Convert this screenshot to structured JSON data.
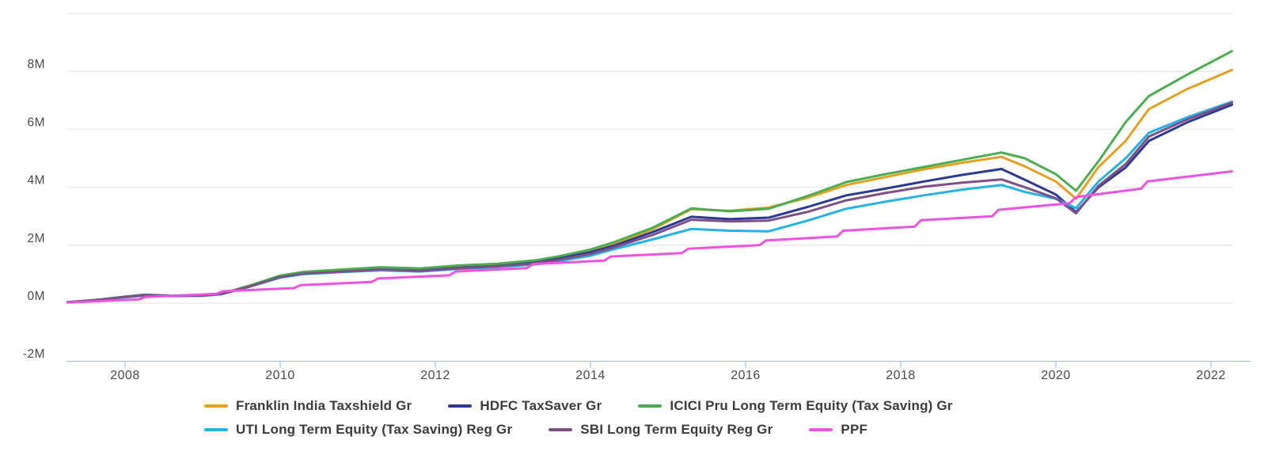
{
  "chart_data": {
    "type": "line",
    "title": "",
    "xlabel": "",
    "ylabel": "",
    "unit": "M",
    "grid": "horizontal",
    "legend_position": "bottom",
    "x_axis": {
      "range": [
        2007.1,
        2022.45
      ],
      "ticks": [
        {
          "value": 2008,
          "label": "2008"
        },
        {
          "value": 2010,
          "label": "2010"
        },
        {
          "value": 2012,
          "label": "2012"
        },
        {
          "value": 2014,
          "label": "2014"
        },
        {
          "value": 2016,
          "label": "2016"
        },
        {
          "value": 2018,
          "label": "2018"
        },
        {
          "value": 2020,
          "label": "2020"
        },
        {
          "value": 2022,
          "label": "2022"
        }
      ]
    },
    "y_axis": {
      "range": [
        -2,
        10
      ],
      "ticks": [
        {
          "value": -2,
          "label": "-2M"
        },
        {
          "value": 0,
          "label": "0M"
        },
        {
          "value": 2,
          "label": "2M"
        },
        {
          "value": 4,
          "label": "4M"
        },
        {
          "value": 6,
          "label": "6M"
        },
        {
          "value": 8,
          "label": "8M"
        },
        {
          "value": 10,
          "label": ""
        }
      ]
    },
    "styles": {
      "background": "#ffffff",
      "grid_color": "#e8e8e8",
      "axis_color": "#a9c4de",
      "tick_label_color": "#4a4a4a",
      "legend_text_color": "#3c3c3c",
      "line_width": 3
    },
    "series": [
      {
        "name": "Franklin India Taxshield Gr",
        "color": "#e5a023",
        "points": [
          [
            2007.26,
            0.03
          ],
          [
            2007.6,
            0.1
          ],
          [
            2008.0,
            0.21
          ],
          [
            2008.25,
            0.27
          ],
          [
            2008.6,
            0.25
          ],
          [
            2009.0,
            0.26
          ],
          [
            2009.25,
            0.32
          ],
          [
            2009.6,
            0.58
          ],
          [
            2010.0,
            0.92
          ],
          [
            2010.3,
            1.04
          ],
          [
            2010.8,
            1.12
          ],
          [
            2011.3,
            1.2
          ],
          [
            2011.8,
            1.16
          ],
          [
            2012.3,
            1.26
          ],
          [
            2012.8,
            1.33
          ],
          [
            2013.3,
            1.45
          ],
          [
            2013.6,
            1.58
          ],
          [
            2014.0,
            1.81
          ],
          [
            2014.3,
            2.05
          ],
          [
            2014.8,
            2.55
          ],
          [
            2015.3,
            3.24
          ],
          [
            2015.8,
            3.19
          ],
          [
            2016.3,
            3.3
          ],
          [
            2016.8,
            3.64
          ],
          [
            2017.3,
            4.08
          ],
          [
            2017.8,
            4.35
          ],
          [
            2018.3,
            4.62
          ],
          [
            2018.8,
            4.85
          ],
          [
            2019.3,
            5.05
          ],
          [
            2019.6,
            4.72
          ],
          [
            2020.0,
            4.2
          ],
          [
            2020.26,
            3.6
          ],
          [
            2020.55,
            4.7
          ],
          [
            2020.9,
            5.6
          ],
          [
            2021.2,
            6.7
          ],
          [
            2021.7,
            7.4
          ],
          [
            2022.27,
            8.05
          ]
        ]
      },
      {
        "name": "HDFC TaxSaver Gr",
        "color": "#2c3a96",
        "points": [
          [
            2007.26,
            0.03
          ],
          [
            2007.6,
            0.1
          ],
          [
            2008.0,
            0.22
          ],
          [
            2008.25,
            0.29
          ],
          [
            2008.6,
            0.26
          ],
          [
            2009.0,
            0.27
          ],
          [
            2009.25,
            0.33
          ],
          [
            2009.6,
            0.59
          ],
          [
            2010.0,
            0.93
          ],
          [
            2010.3,
            1.06
          ],
          [
            2010.8,
            1.13
          ],
          [
            2011.3,
            1.2
          ],
          [
            2011.8,
            1.15
          ],
          [
            2012.3,
            1.24
          ],
          [
            2012.8,
            1.3
          ],
          [
            2013.3,
            1.42
          ],
          [
            2013.6,
            1.55
          ],
          [
            2014.0,
            1.76
          ],
          [
            2014.3,
            1.98
          ],
          [
            2014.8,
            2.45
          ],
          [
            2015.3,
            2.98
          ],
          [
            2015.8,
            2.9
          ],
          [
            2016.3,
            2.95
          ],
          [
            2016.8,
            3.32
          ],
          [
            2017.3,
            3.72
          ],
          [
            2017.8,
            3.95
          ],
          [
            2018.3,
            4.2
          ],
          [
            2018.8,
            4.43
          ],
          [
            2019.3,
            4.63
          ],
          [
            2019.6,
            4.26
          ],
          [
            2020.0,
            3.75
          ],
          [
            2020.26,
            3.14
          ],
          [
            2020.55,
            4.0
          ],
          [
            2020.9,
            4.68
          ],
          [
            2021.2,
            5.6
          ],
          [
            2021.7,
            6.25
          ],
          [
            2022.27,
            6.85
          ]
        ]
      },
      {
        "name": "ICICI Pru Long Term Equity (Tax Saving) Gr",
        "color": "#4bae4f",
        "points": [
          [
            2007.26,
            0.03
          ],
          [
            2007.6,
            0.1
          ],
          [
            2008.0,
            0.22
          ],
          [
            2008.25,
            0.28
          ],
          [
            2008.6,
            0.26
          ],
          [
            2009.0,
            0.27
          ],
          [
            2009.25,
            0.33
          ],
          [
            2009.6,
            0.6
          ],
          [
            2010.0,
            0.95
          ],
          [
            2010.3,
            1.08
          ],
          [
            2010.8,
            1.16
          ],
          [
            2011.3,
            1.24
          ],
          [
            2011.8,
            1.2
          ],
          [
            2012.3,
            1.3
          ],
          [
            2012.8,
            1.36
          ],
          [
            2013.3,
            1.48
          ],
          [
            2013.6,
            1.62
          ],
          [
            2014.0,
            1.85
          ],
          [
            2014.3,
            2.1
          ],
          [
            2014.8,
            2.6
          ],
          [
            2015.3,
            3.27
          ],
          [
            2015.8,
            3.17
          ],
          [
            2016.3,
            3.26
          ],
          [
            2016.8,
            3.7
          ],
          [
            2017.3,
            4.18
          ],
          [
            2017.8,
            4.45
          ],
          [
            2018.3,
            4.7
          ],
          [
            2018.8,
            4.95
          ],
          [
            2019.3,
            5.2
          ],
          [
            2019.6,
            5.0
          ],
          [
            2020.0,
            4.45
          ],
          [
            2020.26,
            3.88
          ],
          [
            2020.55,
            4.9
          ],
          [
            2020.9,
            6.25
          ],
          [
            2021.2,
            7.15
          ],
          [
            2021.7,
            7.9
          ],
          [
            2022.27,
            8.7
          ]
        ]
      },
      {
        "name": "UTI Long Term Equity (Tax Saving) Reg Gr",
        "color": "#25b2e8",
        "points": [
          [
            2007.26,
            0.03
          ],
          [
            2007.6,
            0.1
          ],
          [
            2008.0,
            0.2
          ],
          [
            2008.25,
            0.26
          ],
          [
            2008.6,
            0.24
          ],
          [
            2009.0,
            0.25
          ],
          [
            2009.25,
            0.31
          ],
          [
            2009.6,
            0.56
          ],
          [
            2010.0,
            0.88
          ],
          [
            2010.3,
            1.0
          ],
          [
            2010.8,
            1.07
          ],
          [
            2011.3,
            1.13
          ],
          [
            2011.8,
            1.09
          ],
          [
            2012.3,
            1.18
          ],
          [
            2012.8,
            1.24
          ],
          [
            2013.3,
            1.34
          ],
          [
            2013.6,
            1.45
          ],
          [
            2014.0,
            1.64
          ],
          [
            2014.3,
            1.86
          ],
          [
            2014.8,
            2.2
          ],
          [
            2015.3,
            2.56
          ],
          [
            2015.8,
            2.5
          ],
          [
            2016.3,
            2.48
          ],
          [
            2016.8,
            2.85
          ],
          [
            2017.3,
            3.26
          ],
          [
            2017.8,
            3.5
          ],
          [
            2018.3,
            3.72
          ],
          [
            2018.8,
            3.92
          ],
          [
            2019.3,
            4.08
          ],
          [
            2019.6,
            3.84
          ],
          [
            2020.0,
            3.6
          ],
          [
            2020.26,
            3.28
          ],
          [
            2020.55,
            4.2
          ],
          [
            2020.9,
            5.0
          ],
          [
            2021.2,
            5.88
          ],
          [
            2021.7,
            6.42
          ],
          [
            2022.27,
            6.95
          ]
        ]
      },
      {
        "name": "SBI Long Term Equity Reg Gr",
        "color": "#7d5185",
        "points": [
          [
            2007.26,
            0.03
          ],
          [
            2007.6,
            0.1
          ],
          [
            2008.0,
            0.21
          ],
          [
            2008.25,
            0.27
          ],
          [
            2008.6,
            0.25
          ],
          [
            2009.0,
            0.26
          ],
          [
            2009.25,
            0.32
          ],
          [
            2009.6,
            0.57
          ],
          [
            2010.0,
            0.9
          ],
          [
            2010.3,
            1.02
          ],
          [
            2010.8,
            1.09
          ],
          [
            2011.3,
            1.16
          ],
          [
            2011.8,
            1.11
          ],
          [
            2012.3,
            1.2
          ],
          [
            2012.8,
            1.27
          ],
          [
            2013.3,
            1.38
          ],
          [
            2013.6,
            1.5
          ],
          [
            2014.0,
            1.7
          ],
          [
            2014.3,
            1.92
          ],
          [
            2014.8,
            2.35
          ],
          [
            2015.3,
            2.88
          ],
          [
            2015.8,
            2.82
          ],
          [
            2016.3,
            2.85
          ],
          [
            2016.8,
            3.15
          ],
          [
            2017.3,
            3.55
          ],
          [
            2017.8,
            3.8
          ],
          [
            2018.3,
            4.02
          ],
          [
            2018.8,
            4.16
          ],
          [
            2019.3,
            4.27
          ],
          [
            2019.6,
            4.0
          ],
          [
            2020.0,
            3.62
          ],
          [
            2020.26,
            3.1
          ],
          [
            2020.55,
            4.05
          ],
          [
            2020.9,
            4.8
          ],
          [
            2021.2,
            5.75
          ],
          [
            2021.7,
            6.35
          ],
          [
            2022.27,
            6.92
          ]
        ]
      },
      {
        "name": "PPF",
        "color": "#ef53e0",
        "points": [
          [
            2007.26,
            0.02
          ],
          [
            2008.18,
            0.13
          ],
          [
            2008.26,
            0.21
          ],
          [
            2009.18,
            0.32
          ],
          [
            2009.26,
            0.41
          ],
          [
            2010.18,
            0.52
          ],
          [
            2010.26,
            0.62
          ],
          [
            2011.18,
            0.73
          ],
          [
            2011.26,
            0.85
          ],
          [
            2012.18,
            0.96
          ],
          [
            2012.26,
            1.09
          ],
          [
            2013.18,
            1.21
          ],
          [
            2013.26,
            1.35
          ],
          [
            2014.18,
            1.47
          ],
          [
            2014.26,
            1.61
          ],
          [
            2015.18,
            1.73
          ],
          [
            2015.26,
            1.88
          ],
          [
            2016.18,
            2.0
          ],
          [
            2016.26,
            2.16
          ],
          [
            2017.18,
            2.3
          ],
          [
            2017.26,
            2.5
          ],
          [
            2018.18,
            2.64
          ],
          [
            2018.26,
            2.86
          ],
          [
            2019.18,
            3.0
          ],
          [
            2019.26,
            3.22
          ],
          [
            2020.18,
            3.45
          ],
          [
            2020.26,
            3.66
          ],
          [
            2021.1,
            3.95
          ],
          [
            2021.18,
            4.2
          ],
          [
            2021.8,
            4.4
          ],
          [
            2022.27,
            4.55
          ]
        ]
      }
    ]
  }
}
